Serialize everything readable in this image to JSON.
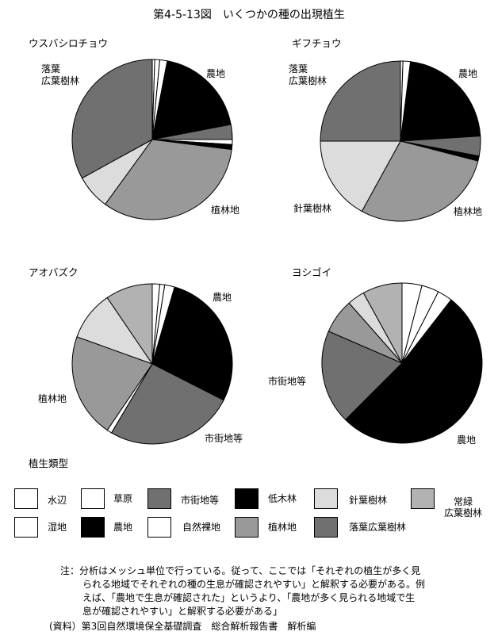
{
  "title": "第4-5-13図　いくつかの種の出現植生",
  "colors": {
    "水辺": "#ffffff",
    "湿地": "#ffffff",
    "草原": "#ffffff",
    "農地": "#000000",
    "市街地等": "#707070",
    "自然裸地": "#ffffff",
    "低木林": "#000000",
    "植林地": "#999999",
    "針葉樹林": "#dcdcdc",
    "落葉広葉樹林": "#707070",
    "常緑広葉樹林": "#b2b2b2"
  },
  "chart_data": [
    {
      "type": "pie",
      "title": "ウスバシロチョウ",
      "slices": [
        {
          "label": "水辺",
          "value": 0.5
        },
        {
          "label": "湿地",
          "value": 1
        },
        {
          "label": "草原",
          "value": 1.5
        },
        {
          "label": "農地",
          "value": 19
        },
        {
          "label": "市街地等",
          "value": 3
        },
        {
          "label": "自然裸地",
          "value": 1
        },
        {
          "label": "低木林",
          "value": 1
        },
        {
          "label": "植林地",
          "value": 33
        },
        {
          "label": "針葉樹林",
          "value": 7
        },
        {
          "label": "落葉広葉樹林",
          "value": 33
        }
      ],
      "slice_labels": [
        {
          "text": "農地"
        },
        {
          "text": "植林地"
        },
        {
          "text": "落葉\n広葉樹林"
        }
      ]
    },
    {
      "type": "pie",
      "title": "ギフチョウ",
      "slices": [
        {
          "label": "水辺",
          "value": 0.5
        },
        {
          "label": "湿地",
          "value": 1.5
        },
        {
          "label": "農地",
          "value": 22
        },
        {
          "label": "市街地等",
          "value": 4
        },
        {
          "label": "低木林",
          "value": 1
        },
        {
          "label": "植林地",
          "value": 29
        },
        {
          "label": "針葉樹林",
          "value": 17
        },
        {
          "label": "落葉広葉樹林",
          "value": 25
        }
      ],
      "slice_labels": [
        {
          "text": "農地"
        },
        {
          "text": "植林地"
        },
        {
          "text": "針葉樹林"
        },
        {
          "text": "落葉\n広葉樹林"
        }
      ]
    },
    {
      "type": "pie",
      "title": "アオバズク",
      "slices": [
        {
          "label": "水辺",
          "value": 1.5
        },
        {
          "label": "湿地",
          "value": 1
        },
        {
          "label": "草原",
          "value": 2
        },
        {
          "label": "農地",
          "value": 28
        },
        {
          "label": "市街地等",
          "value": 26
        },
        {
          "label": "自然裸地",
          "value": 1
        },
        {
          "label": "植林地",
          "value": 21
        },
        {
          "label": "針葉樹林",
          "value": 10
        },
        {
          "label": "常緑広葉樹林",
          "value": 9.5
        }
      ],
      "slice_labels": [
        {
          "text": "農地"
        },
        {
          "text": "市街地等"
        },
        {
          "text": "植林地"
        }
      ]
    },
    {
      "type": "pie",
      "title": "ヨシゴイ",
      "slices": [
        {
          "label": "水辺",
          "value": 4
        },
        {
          "label": "湿地",
          "value": 3.5
        },
        {
          "label": "草原",
          "value": 3
        },
        {
          "label": "農地",
          "value": 52
        },
        {
          "label": "市街地等",
          "value": 19
        },
        {
          "label": "植林地",
          "value": 7
        },
        {
          "label": "針葉樹林",
          "value": 3.5
        },
        {
          "label": "常緑広葉樹林",
          "value": 8
        }
      ],
      "slice_labels": [
        {
          "text": "農地"
        },
        {
          "text": "市街地等"
        }
      ]
    }
  ],
  "legend": {
    "title": "植生類型",
    "items": [
      {
        "label": "水辺",
        "key": "水辺"
      },
      {
        "label": "草原",
        "key": "草原"
      },
      {
        "label": "市街地等",
        "key": "市街地等"
      },
      {
        "label": "低木林",
        "key": "低木林"
      },
      {
        "label": "針葉樹林",
        "key": "針葉樹林"
      },
      {
        "label": "常緑\n広葉樹林",
        "key": "常緑広葉樹林"
      },
      {
        "label": "湿地",
        "key": "湿地"
      },
      {
        "label": "農地",
        "key": "農地"
      },
      {
        "label": "自然裸地",
        "key": "自然裸地"
      },
      {
        "label": "植林地",
        "key": "植林地"
      },
      {
        "label": "落葉広葉樹林",
        "key": "落葉広葉樹林"
      }
    ]
  },
  "note": {
    "line1": "注：分析はメッシュ単位で行っている。従って、ここでは「それぞれの植生が多く見",
    "line2": "られる地域でそれぞれの種の生息が確認されやすい」と解釈する必要がある。例",
    "line3": "えば、「農地で生息が確認された」というより、「農地が多く見られる地域で生",
    "line4": "息が確認されやすい」と解釈する必要がある」",
    "source": "(資料）第3回自然環境保全基礎調査　総合解析報告書　解析編"
  }
}
